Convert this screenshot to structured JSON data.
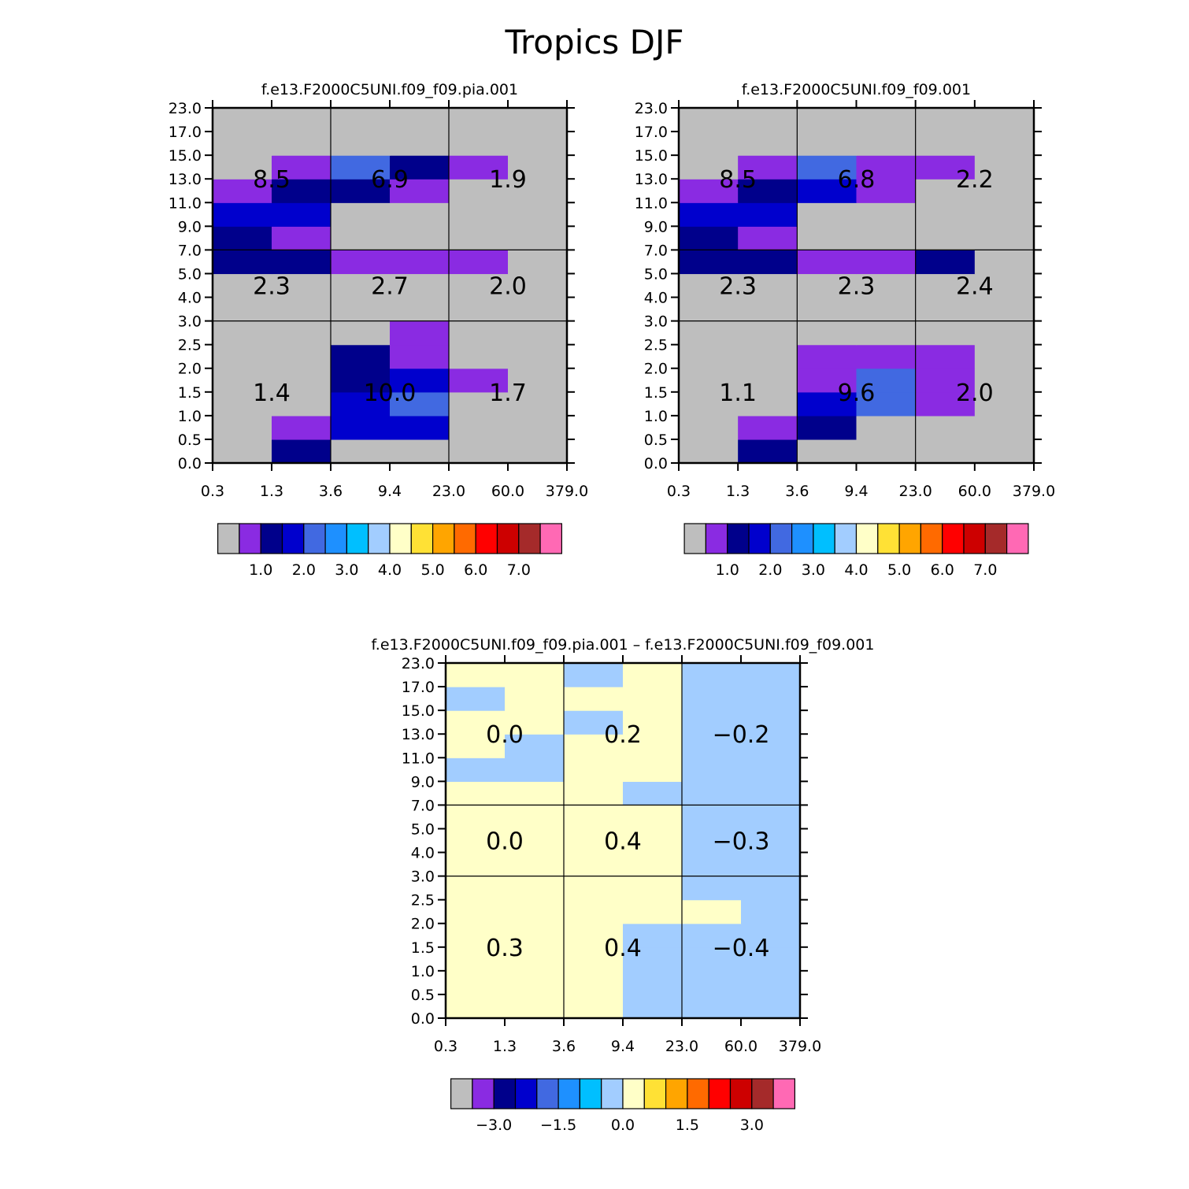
{
  "chart_data": {
    "type": "heatmap",
    "title": "Tropics DJF",
    "x_ticks": [
      "0.3",
      "1.3",
      "3.6",
      "9.4",
      "23.0",
      "60.0",
      "379.0"
    ],
    "y_ticks": [
      "0.0",
      "0.5",
      "1.0",
      "1.5",
      "2.0",
      "2.5",
      "3.0",
      "4.0",
      "5.0",
      "7.0",
      "9.0",
      "11.0",
      "13.0",
      "15.0",
      "17.0",
      "23.0"
    ],
    "colors": [
      "#bebebe",
      "#8a2be2",
      "#00008b",
      "#0000cd",
      "#4169e1",
      "#1e90ff",
      "#00bfff",
      "#a2cdff",
      "#ffffc8",
      "#ffe135",
      "#ffa500",
      "#ff6a00",
      "#ff0000",
      "#cd0000",
      "#a52a2a",
      "#ff69b4"
    ],
    "panels": [
      {
        "id": "panel-pia",
        "title": "f.e13.F2000C5UNI.f09_f09.pia.001",
        "colorbar_labels": [
          "1.0",
          "2.0",
          "3.0",
          "4.0",
          "5.0",
          "6.0",
          "7.0"
        ],
        "summary": [
          [
            "1.4",
            "10.0",
            "1.7"
          ],
          [
            "2.3",
            "2.7",
            "2.0"
          ],
          [
            "8.5",
            "6.9",
            "1.9"
          ]
        ],
        "cells": [
          [
            0,
            2,
            0,
            0,
            0,
            0
          ],
          [
            0,
            1,
            3,
            3,
            0,
            0
          ],
          [
            0,
            0,
            3,
            4,
            0,
            0
          ],
          [
            0,
            0,
            2,
            3,
            1,
            0
          ],
          [
            0,
            0,
            2,
            1,
            0,
            0
          ],
          [
            0,
            0,
            0,
            1,
            0,
            0
          ],
          [
            0,
            0,
            0,
            0,
            0,
            0
          ],
          [
            0,
            0,
            0,
            0,
            0,
            0
          ],
          [
            2,
            2,
            1,
            1,
            1,
            0
          ],
          [
            2,
            1,
            0,
            0,
            0,
            0
          ],
          [
            3,
            3,
            0,
            0,
            0,
            0
          ],
          [
            1,
            2,
            2,
            1,
            0,
            0
          ],
          [
            0,
            1,
            4,
            2,
            1,
            0
          ],
          [
            0,
            0,
            0,
            0,
            0,
            0
          ],
          [
            0,
            0,
            0,
            0,
            0,
            0
          ]
        ]
      },
      {
        "id": "panel-ctrl",
        "title": "f.e13.F2000C5UNI.f09_f09.001",
        "colorbar_labels": [
          "1.0",
          "2.0",
          "3.0",
          "4.0",
          "5.0",
          "6.0",
          "7.0"
        ],
        "summary": [
          [
            "1.1",
            "9.6",
            "2.0"
          ],
          [
            "2.3",
            "2.3",
            "2.4"
          ],
          [
            "8.5",
            "6.8",
            "2.2"
          ]
        ],
        "cells": [
          [
            0,
            2,
            0,
            0,
            0,
            0
          ],
          [
            0,
            1,
            2,
            0,
            0,
            0
          ],
          [
            0,
            0,
            3,
            4,
            1,
            0
          ],
          [
            0,
            0,
            1,
            4,
            1,
            0
          ],
          [
            0,
            0,
            1,
            1,
            1,
            0
          ],
          [
            0,
            0,
            0,
            0,
            0,
            0
          ],
          [
            0,
            0,
            0,
            0,
            0,
            0
          ],
          [
            0,
            0,
            0,
            0,
            0,
            0
          ],
          [
            2,
            2,
            1,
            1,
            2,
            0
          ],
          [
            2,
            1,
            0,
            0,
            0,
            0
          ],
          [
            3,
            3,
            0,
            0,
            0,
            0
          ],
          [
            1,
            2,
            3,
            1,
            0,
            0
          ],
          [
            0,
            1,
            4,
            1,
            1,
            0
          ],
          [
            0,
            0,
            0,
            0,
            0,
            0
          ],
          [
            0,
            0,
            0,
            0,
            0,
            0
          ]
        ]
      },
      {
        "id": "panel-diff",
        "title": "f.e13.F2000C5UNI.f09_f09.pia.001 – f.e13.F2000C5UNI.f09_f09.001",
        "colorbar_labels": [
          "−3.0",
          "−1.5",
          "0.0",
          "1.5",
          "3.0"
        ],
        "summary": [
          [
            "0.3",
            "0.4",
            "−0.4"
          ],
          [
            "0.0",
            "0.4",
            "−0.3"
          ],
          [
            "0.0",
            "0.2",
            "−0.2"
          ]
        ],
        "cells": [
          [
            8,
            8,
            8,
            7,
            7,
            7
          ],
          [
            8,
            8,
            8,
            7,
            7,
            7
          ],
          [
            8,
            8,
            8,
            7,
            7,
            7
          ],
          [
            8,
            8,
            8,
            7,
            7,
            7
          ],
          [
            8,
            8,
            8,
            8,
            8,
            7
          ],
          [
            8,
            8,
            8,
            8,
            7,
            7
          ],
          [
            8,
            8,
            8,
            8,
            7,
            7
          ],
          [
            8,
            8,
            8,
            8,
            7,
            7
          ],
          [
            8,
            8,
            8,
            8,
            7,
            7
          ],
          [
            8,
            8,
            8,
            7,
            7,
            7
          ],
          [
            7,
            7,
            8,
            8,
            7,
            7
          ],
          [
            8,
            7,
            8,
            8,
            7,
            7
          ],
          [
            8,
            8,
            7,
            8,
            7,
            7
          ],
          [
            7,
            8,
            8,
            8,
            7,
            7
          ],
          [
            8,
            8,
            7,
            8,
            7,
            7
          ]
        ]
      }
    ]
  }
}
